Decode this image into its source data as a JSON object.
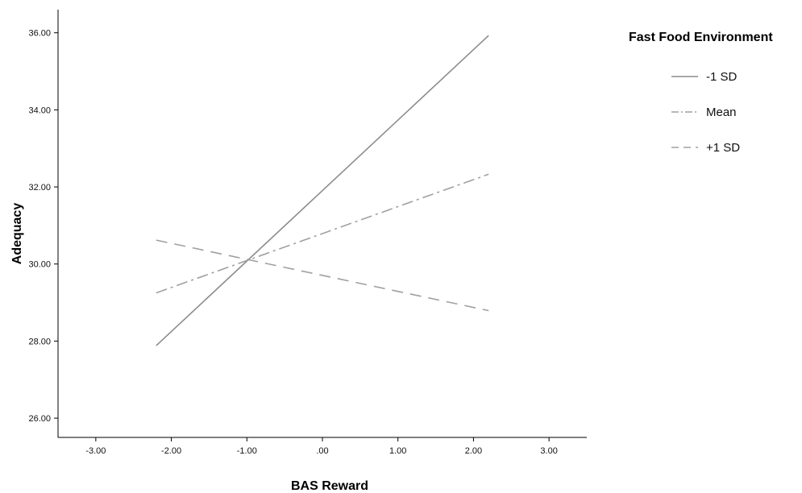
{
  "chart_data": {
    "type": "line",
    "xlabel": "BAS Reward",
    "ylabel": "Adequacy",
    "xlim": [
      -3.5,
      3.5
    ],
    "ylim": [
      25.5,
      36.6
    ],
    "x_ticks": [
      -3,
      -2,
      -1,
      0,
      1,
      2,
      3
    ],
    "x_tick_labels": [
      "-3.00",
      "-2.00",
      "-1.00",
      ".00",
      "1.00",
      "2.00",
      "3.00"
    ],
    "y_ticks": [
      26,
      28,
      30,
      32,
      34,
      36
    ],
    "y_tick_labels": [
      "26.00",
      "28.00",
      "30.00",
      "32.00",
      "34.00",
      "36.00"
    ],
    "grid": false,
    "legend": {
      "title": "Fast Food Environment",
      "placement": "right"
    },
    "series": [
      {
        "name": "-1 SD",
        "style": "solid",
        "color": "#8c8c8c",
        "x": [
          -2.2,
          2.2
        ],
        "y": [
          27.88,
          35.93
        ]
      },
      {
        "name": "Mean",
        "style": "dashdot",
        "color": "#a0a0a0",
        "x": [
          -2.2,
          2.2
        ],
        "y": [
          29.25,
          32.33
        ]
      },
      {
        "name": "+1 SD",
        "style": "dashed",
        "color": "#a0a0a0",
        "x": [
          -2.2,
          2.2
        ],
        "y": [
          30.62,
          28.79
        ]
      }
    ]
  }
}
